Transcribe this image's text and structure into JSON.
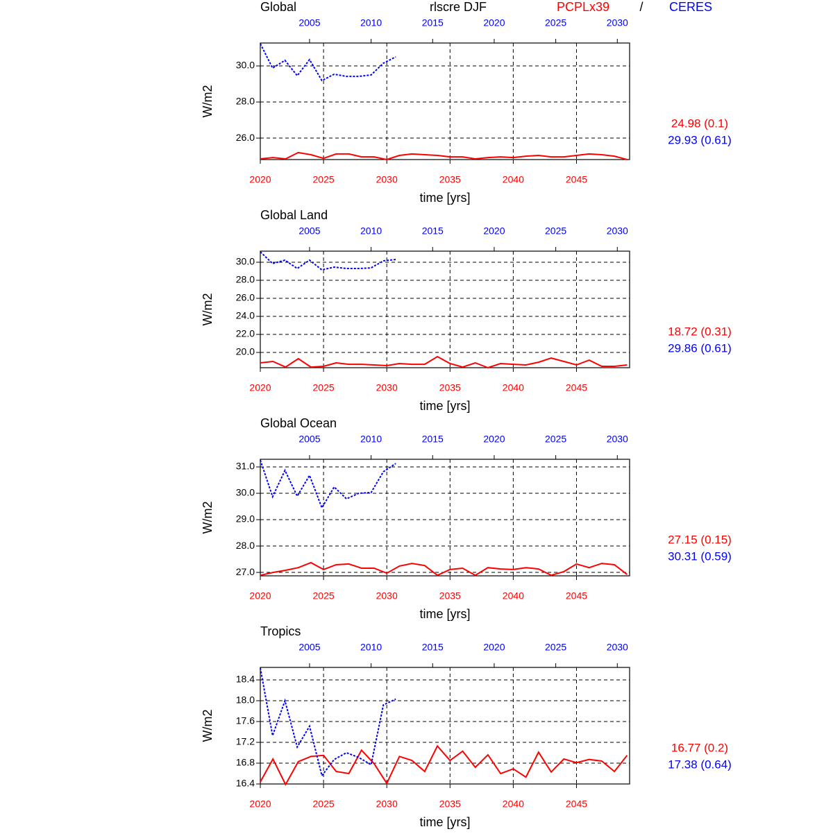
{
  "figure": {
    "title": "rlscre DJF",
    "model": "PCPLx39",
    "separator": "/",
    "obs": "CERES",
    "model_color": "#ff0000",
    "obs_color": "#0000ff"
  },
  "chart_data": [
    {
      "type": "line",
      "title": "Global",
      "ylabel": "W/m2",
      "xlabel": "time [yrs]",
      "grid": true,
      "xlim": [
        2020,
        2049.2
      ],
      "xticks": [
        2020,
        2025,
        2030,
        2035,
        2040,
        2045
      ],
      "x2lim": [
        2001,
        2031
      ],
      "x2ticks": [
        2005,
        2010,
        2015,
        2020,
        2025,
        2030
      ],
      "ylim": [
        24.81,
        31.27
      ],
      "yticks": [
        {
          "value": 26,
          "label": "26.0"
        },
        {
          "value": 28,
          "label": "28.0"
        },
        {
          "value": 30,
          "label": "30.0"
        }
      ],
      "series": [
        {
          "color": "#ff0000",
          "dashed": false,
          "stat_label": "24.98 (0.1)",
          "x": [
            2020,
            2021,
            2022,
            2023,
            2024,
            2025,
            2026,
            2027,
            2028,
            2029,
            2030,
            2031,
            2032,
            2033,
            2034,
            2035,
            2036,
            2037,
            2038,
            2039,
            2040,
            2041,
            2042,
            2043,
            2044,
            2045,
            2046,
            2047,
            2048,
            2049
          ],
          "values": [
            24.85,
            24.92,
            24.85,
            25.2,
            25.08,
            24.88,
            25.12,
            25.12,
            24.96,
            24.96,
            24.81,
            25.04,
            25.12,
            25.08,
            25.04,
            24.96,
            24.96,
            24.85,
            24.92,
            24.96,
            24.92,
            25.0,
            25.04,
            24.96,
            24.96,
            25.04,
            25.12,
            25.08,
            25.0,
            24.81
          ]
        },
        {
          "color": "#0000ff",
          "dashed": true,
          "axis": "x2",
          "stat_label": "29.93 (0.61)",
          "x": [
            2001,
            2002,
            2003,
            2004,
            2005,
            2006,
            2007,
            2008,
            2009,
            2010,
            2011,
            2012
          ],
          "values": [
            31.23,
            29.88,
            30.31,
            29.46,
            30.35,
            29.19,
            29.54,
            29.42,
            29.42,
            29.5,
            30.15,
            30.5
          ]
        }
      ]
    },
    {
      "type": "line",
      "title": "Global Land",
      "ylabel": "W/m2",
      "xlabel": "time [yrs]",
      "grid": true,
      "xlim": [
        2020,
        2049.2
      ],
      "xticks": [
        2020,
        2025,
        2030,
        2035,
        2040,
        2045
      ],
      "x2lim": [
        2001,
        2031
      ],
      "x2ticks": [
        2005,
        2010,
        2015,
        2020,
        2025,
        2030
      ],
      "ylim": [
        18.31,
        31.23
      ],
      "yticks": [
        {
          "value": 20,
          "label": "20.0"
        },
        {
          "value": 22,
          "label": "22.0"
        },
        {
          "value": 24,
          "label": "24.0"
        },
        {
          "value": 26,
          "label": "26.0"
        },
        {
          "value": 28,
          "label": "28.0"
        },
        {
          "value": 30,
          "label": "30.0"
        }
      ],
      "series": [
        {
          "color": "#ff0000",
          "dashed": false,
          "stat_label": "18.72 (0.31)",
          "x": [
            2020,
            2021,
            2022,
            2023,
            2024,
            2025,
            2026,
            2027,
            2028,
            2029,
            2030,
            2031,
            2032,
            2033,
            2034,
            2035,
            2036,
            2037,
            2038,
            2039,
            2040,
            2041,
            2042,
            2043,
            2044,
            2045,
            2046,
            2047,
            2048,
            2049
          ],
          "values": [
            18.85,
            19.0,
            18.38,
            19.31,
            18.38,
            18.46,
            18.85,
            18.69,
            18.69,
            18.62,
            18.54,
            18.77,
            18.69,
            18.69,
            19.54,
            18.77,
            18.38,
            18.85,
            18.31,
            18.77,
            18.69,
            18.62,
            18.92,
            19.38,
            19.0,
            18.62,
            19.15,
            18.46,
            18.46,
            18.62
          ]
        },
        {
          "color": "#0000ff",
          "dashed": true,
          "axis": "x2",
          "stat_label": "29.86 (0.61)",
          "x": [
            2001,
            2002,
            2003,
            2004,
            2005,
            2006,
            2007,
            2008,
            2009,
            2010,
            2011,
            2012
          ],
          "values": [
            31.15,
            29.85,
            30.23,
            29.31,
            30.23,
            29.15,
            29.46,
            29.31,
            29.31,
            29.38,
            30.15,
            30.31
          ]
        }
      ]
    },
    {
      "type": "line",
      "title": "Global Ocean",
      "ylabel": "W/m2",
      "xlabel": "time [yrs]",
      "grid": true,
      "xlim": [
        2020,
        2049.2
      ],
      "xticks": [
        2020,
        2025,
        2030,
        2035,
        2040,
        2045
      ],
      "x2lim": [
        2001,
        2031
      ],
      "x2ticks": [
        2005,
        2010,
        2015,
        2020,
        2025,
        2030
      ],
      "ylim": [
        26.87,
        31.29
      ],
      "yticks": [
        {
          "value": 27,
          "label": "27.0"
        },
        {
          "value": 28,
          "label": "28.0"
        },
        {
          "value": 29,
          "label": "29.0"
        },
        {
          "value": 30,
          "label": "30.0"
        },
        {
          "value": 31,
          "label": "31.0"
        }
      ],
      "series": [
        {
          "color": "#ff0000",
          "dashed": false,
          "stat_label": "27.15 (0.15)",
          "x": [
            2020,
            2021,
            2022,
            2023,
            2024,
            2025,
            2026,
            2027,
            2028,
            2029,
            2030,
            2031,
            2032,
            2033,
            2034,
            2035,
            2036,
            2037,
            2038,
            2039,
            2040,
            2041,
            2042,
            2043,
            2044,
            2045,
            2046,
            2047,
            2048,
            2049
          ],
          "values": [
            26.89,
            27.0,
            27.08,
            27.18,
            27.37,
            27.11,
            27.29,
            27.32,
            27.16,
            27.16,
            26.97,
            27.24,
            27.34,
            27.26,
            26.89,
            27.11,
            27.16,
            26.89,
            27.18,
            27.13,
            27.11,
            27.18,
            27.13,
            26.89,
            27.03,
            27.32,
            27.18,
            27.34,
            27.29,
            26.92
          ]
        },
        {
          "color": "#0000ff",
          "dashed": true,
          "axis": "x2",
          "stat_label": "30.31 (0.59)",
          "x": [
            2001,
            2002,
            2003,
            2004,
            2005,
            2006,
            2007,
            2008,
            2009,
            2010,
            2011,
            2012
          ],
          "values": [
            31.26,
            29.87,
            30.87,
            29.89,
            30.68,
            29.45,
            30.24,
            29.79,
            30.0,
            30.03,
            30.82,
            31.13
          ]
        }
      ]
    },
    {
      "type": "line",
      "title": "Tropics",
      "ylabel": "W/m2",
      "xlabel": "time [yrs]",
      "grid": true,
      "xlim": [
        2020,
        2049.2
      ],
      "xticks": [
        2020,
        2025,
        2030,
        2035,
        2040,
        2045
      ],
      "x2lim": [
        2001,
        2031
      ],
      "x2ticks": [
        2005,
        2010,
        2015,
        2020,
        2025,
        2030
      ],
      "ylim": [
        16.4,
        18.64
      ],
      "yticks": [
        16.4,
        16.8,
        17.2,
        17.6,
        {
          "value": 18,
          "label": "18.0"
        },
        18.4
      ],
      "series": [
        {
          "color": "#ff0000",
          "dashed": false,
          "stat_label": "16.77 (0.2)",
          "x": [
            2020,
            2021,
            2022,
            2023,
            2024,
            2025,
            2026,
            2027,
            2028,
            2029,
            2030,
            2031,
            2032,
            2033,
            2034,
            2035,
            2036,
            2037,
            2038,
            2039,
            2040,
            2041,
            2042,
            2043,
            2044,
            2045,
            2046,
            2047,
            2048,
            2049
          ],
          "values": [
            16.44,
            16.88,
            16.39,
            16.83,
            16.93,
            16.95,
            16.64,
            16.6,
            17.05,
            16.79,
            16.41,
            16.93,
            16.85,
            16.64,
            17.13,
            16.85,
            17.03,
            16.72,
            16.96,
            16.6,
            16.69,
            16.53,
            17.01,
            16.63,
            16.88,
            16.81,
            16.87,
            16.84,
            16.64,
            16.95
          ]
        },
        {
          "color": "#0000ff",
          "dashed": true,
          "axis": "x2",
          "stat_label": "17.38 (0.64)",
          "x": [
            2001,
            2002,
            2003,
            2004,
            2005,
            2006,
            2007,
            2008,
            2009,
            2010,
            2011,
            2012
          ],
          "values": [
            18.63,
            17.33,
            18.0,
            17.11,
            17.51,
            16.56,
            16.87,
            17.0,
            16.91,
            16.77,
            17.92,
            18.03
          ]
        }
      ]
    }
  ]
}
